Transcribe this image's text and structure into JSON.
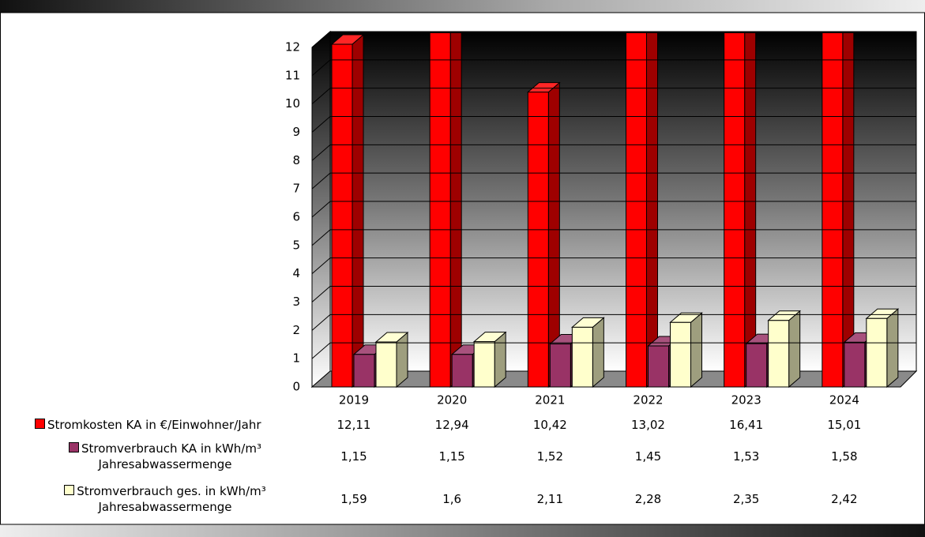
{
  "chart_data": {
    "type": "bar3d",
    "categories": [
      "2019",
      "2020",
      "2021",
      "2022",
      "2023",
      "2024"
    ],
    "series": [
      {
        "name": "Stromkosten KA in €/Einwohner/Jahr",
        "color": "#ff0000",
        "values": [
          12.11,
          12.94,
          10.42,
          13.02,
          16.41,
          15.01
        ],
        "value_labels": [
          "12,11",
          "12,94",
          "10,42",
          "13,02",
          "16,41",
          "15,01"
        ]
      },
      {
        "name": "Stromverbrauch KA in kWh/m³ Jahresabwassermenge",
        "color": "#993366",
        "values": [
          1.15,
          1.15,
          1.52,
          1.45,
          1.53,
          1.58
        ],
        "value_labels": [
          "1,15",
          "1,15",
          "1,52",
          "1,45",
          "1,53",
          "1,58"
        ]
      },
      {
        "name": "Stromverbrauch ges. in kWh/m³ Jahresabwassermenge",
        "color": "#ffffcc",
        "values": [
          1.59,
          1.6,
          2.11,
          2.28,
          2.35,
          2.42
        ],
        "value_labels": [
          "1,59",
          "1,6",
          "2,11",
          "2,28",
          "2,35",
          "2,42"
        ]
      }
    ],
    "ylim": [
      0,
      12
    ],
    "yticks": [
      0,
      1,
      2,
      3,
      4,
      5,
      6,
      7,
      8,
      9,
      10,
      11,
      12
    ],
    "grid": true,
    "data_table": true
  }
}
